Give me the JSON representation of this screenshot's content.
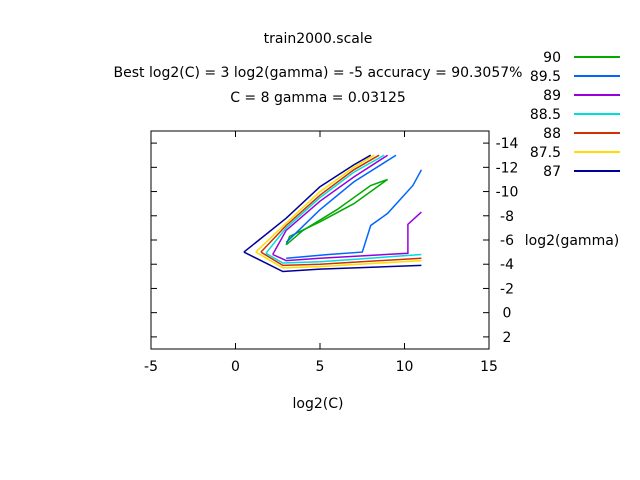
{
  "chart_data": {
    "type": "line",
    "title": "train2000.scale",
    "subtitle_line1": "Best log2(C) = 3  log2(gamma) = -5  accuracy = 90.3057%",
    "subtitle_line2": "C = 8  gamma = 0.03125",
    "xlabel": "log2(C)",
    "ylabel": "log2(gamma)",
    "xlim": [
      -5,
      15
    ],
    "ylim": [
      3,
      -15
    ],
    "x_ticks": [
      -5,
      0,
      5,
      10,
      15
    ],
    "y_ticks": [
      -14,
      -12,
      -10,
      -8,
      -6,
      -4,
      -2,
      0,
      2
    ],
    "legend_position": "top-right",
    "series": [
      {
        "name": "90",
        "color": "#00aa00",
        "points": [
          [
            3,
            -5.6
          ],
          [
            3.2,
            -6.3
          ],
          [
            5,
            -7.5
          ],
          [
            7,
            -9
          ],
          [
            9,
            -11
          ]
        ]
      },
      {
        "name": "89.5",
        "color": "#0066ff",
        "points": [
          [
            3,
            -4.5
          ],
          [
            5.5,
            -4.8
          ],
          [
            7.5,
            -5
          ],
          [
            8,
            -7.2
          ],
          [
            9,
            -8.2
          ],
          [
            10.5,
            -10.5
          ],
          [
            11,
            -11.8
          ]
        ]
      },
      {
        "name": "89",
        "color": "#9900dd",
        "points": [
          [
            2.2,
            -4.8
          ],
          [
            3,
            -4.3
          ],
          [
            5,
            -4.5
          ],
          [
            10.2,
            -4.9
          ],
          [
            10.2,
            -7.3
          ],
          [
            11,
            -8.3
          ]
        ]
      },
      {
        "name": "88.5",
        "color": "#00dddd",
        "points": [
          [
            1.8,
            -4.9
          ],
          [
            2.8,
            -4.1
          ],
          [
            5,
            -4.2
          ],
          [
            11,
            -4.8
          ]
        ]
      },
      {
        "name": "88",
        "color": "#cc3300",
        "points": [
          [
            1.5,
            -5
          ],
          [
            2.8,
            -3.9
          ],
          [
            5,
            -4
          ],
          [
            11,
            -4.5
          ]
        ]
      },
      {
        "name": "87.5",
        "color": "#ffdd00",
        "points": [
          [
            1.2,
            -5
          ],
          [
            2.8,
            -3.7
          ],
          [
            5,
            -3.8
          ],
          [
            11,
            -4.3
          ]
        ]
      },
      {
        "name": "87",
        "color": "#000099",
        "points": [
          [
            0.5,
            -5
          ],
          [
            2.8,
            -3.4
          ],
          [
            5,
            -3.6
          ],
          [
            11,
            -3.9
          ]
        ]
      }
    ],
    "upper_branches": [
      {
        "series": "90",
        "points": [
          [
            3,
            -5.6
          ],
          [
            4,
            -6.8
          ],
          [
            6,
            -8.5
          ],
          [
            8,
            -10.5
          ],
          [
            9,
            -11
          ]
        ]
      },
      {
        "series": "89.5",
        "points": [
          [
            3,
            -5.8
          ],
          [
            5,
            -8.5
          ],
          [
            7,
            -10.8
          ],
          [
            9.5,
            -13
          ]
        ]
      },
      {
        "series": "89",
        "points": [
          [
            2.2,
            -4.8
          ],
          [
            3,
            -6.8
          ],
          [
            5,
            -9.2
          ],
          [
            7,
            -11.2
          ],
          [
            9,
            -13
          ]
        ]
      },
      {
        "series": "88.5",
        "points": [
          [
            1.8,
            -4.9
          ],
          [
            3,
            -7
          ],
          [
            5,
            -9.5
          ],
          [
            7,
            -11.6
          ],
          [
            8.8,
            -13
          ]
        ]
      },
      {
        "series": "88",
        "points": [
          [
            1.5,
            -5
          ],
          [
            3,
            -7.2
          ],
          [
            5,
            -9.7
          ],
          [
            7,
            -11.8
          ],
          [
            8.5,
            -13
          ]
        ]
      },
      {
        "series": "87.5",
        "points": [
          [
            1.2,
            -5
          ],
          [
            3,
            -7.4
          ],
          [
            5,
            -10
          ],
          [
            7,
            -12
          ],
          [
            8.2,
            -13
          ]
        ]
      },
      {
        "series": "87",
        "points": [
          [
            0.5,
            -5
          ],
          [
            3,
            -7.8
          ],
          [
            5,
            -10.4
          ],
          [
            7,
            -12.2
          ],
          [
            8,
            -13
          ]
        ]
      }
    ]
  }
}
